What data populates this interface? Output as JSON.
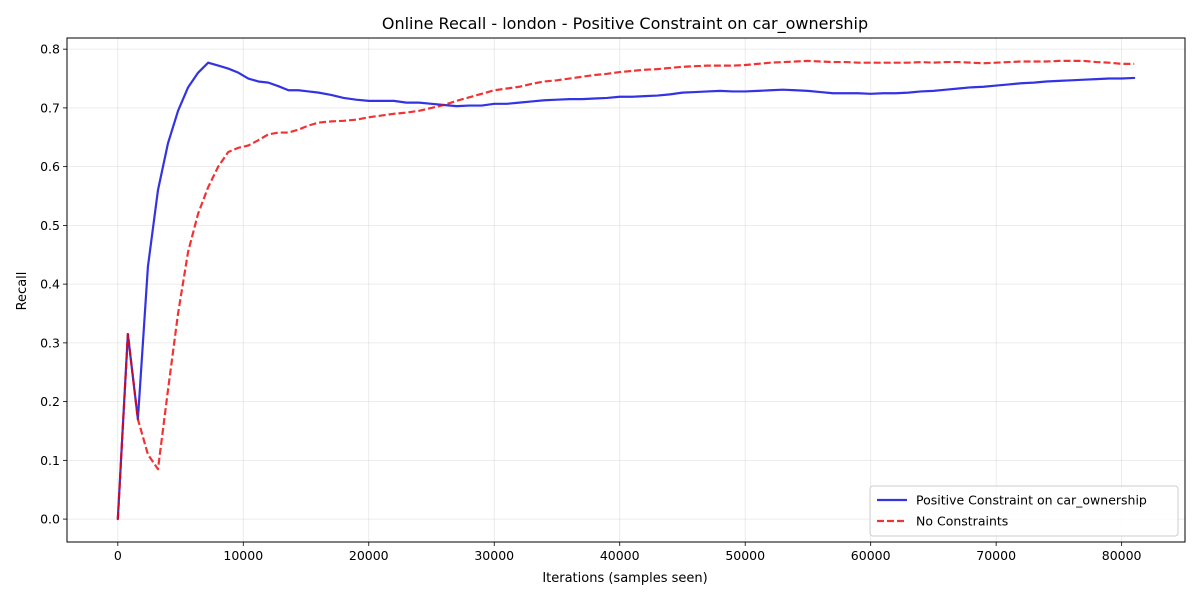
{
  "chart_data": {
    "type": "line",
    "title": "Online Recall - london - Positive Constraint on car_ownership",
    "xlabel": "Iterations (samples seen)",
    "ylabel": "Recall",
    "xlim": [
      -4050,
      85050
    ],
    "ylim": [
      -0.039,
      0.819
    ],
    "xticks": [
      0,
      10000,
      20000,
      30000,
      40000,
      50000,
      60000,
      70000,
      80000
    ],
    "yticks": [
      0.0,
      0.1,
      0.2,
      0.3,
      0.4,
      0.5,
      0.6,
      0.7,
      0.8
    ],
    "xtick_labels": [
      "0",
      "10000",
      "20000",
      "30000",
      "40000",
      "50000",
      "60000",
      "70000",
      "80000"
    ],
    "ytick_labels": [
      "0.0",
      "0.1",
      "0.2",
      "0.3",
      "0.4",
      "0.5",
      "0.6",
      "0.7",
      "0.8"
    ],
    "grid": true,
    "legend_position": "lower-right",
    "series": [
      {
        "name": "Positive Constraint on car_ownership",
        "color": "#0000dd",
        "style": "solid",
        "x": [
          0,
          800,
          1600,
          2400,
          3200,
          4000,
          4800,
          5600,
          6400,
          7200,
          8000,
          8800,
          9600,
          10400,
          11200,
          12000,
          12800,
          13600,
          14400,
          15200,
          16000,
          17000,
          18000,
          19000,
          20000,
          21000,
          22000,
          23000,
          24000,
          25000,
          26000,
          27000,
          28000,
          29000,
          30000,
          31000,
          32000,
          33000,
          34000,
          35000,
          36000,
          37000,
          38000,
          39000,
          40000,
          41000,
          42000,
          43000,
          44000,
          45000,
          46000,
          47000,
          48000,
          49000,
          50000,
          51000,
          52000,
          53000,
          54000,
          55000,
          56000,
          57000,
          58000,
          59000,
          60000,
          61000,
          62000,
          63000,
          64000,
          65000,
          66000,
          67000,
          68000,
          69000,
          70000,
          71000,
          72000,
          73000,
          74000,
          75000,
          76000,
          77000,
          78000,
          79000,
          80000,
          81000
        ],
        "y": [
          0.0,
          0.315,
          0.17,
          0.43,
          0.56,
          0.64,
          0.695,
          0.735,
          0.76,
          0.777,
          0.772,
          0.767,
          0.76,
          0.75,
          0.745,
          0.743,
          0.737,
          0.73,
          0.73,
          0.728,
          0.726,
          0.722,
          0.717,
          0.714,
          0.712,
          0.712,
          0.712,
          0.709,
          0.709,
          0.707,
          0.705,
          0.703,
          0.704,
          0.704,
          0.707,
          0.707,
          0.709,
          0.711,
          0.713,
          0.714,
          0.715,
          0.715,
          0.716,
          0.717,
          0.719,
          0.719,
          0.72,
          0.721,
          0.723,
          0.726,
          0.727,
          0.728,
          0.729,
          0.728,
          0.728,
          0.729,
          0.73,
          0.731,
          0.73,
          0.729,
          0.727,
          0.725,
          0.725,
          0.725,
          0.724,
          0.725,
          0.725,
          0.726,
          0.728,
          0.729,
          0.731,
          0.733,
          0.735,
          0.736,
          0.738,
          0.74,
          0.742,
          0.743,
          0.745,
          0.746,
          0.747,
          0.748,
          0.749,
          0.75,
          0.75,
          0.751
        ]
      },
      {
        "name": "No Constraints",
        "color": "#ee0000",
        "style": "dashed",
        "x": [
          0,
          800,
          1600,
          2400,
          3200,
          4000,
          4800,
          5600,
          6400,
          7200,
          8000,
          8800,
          9600,
          10400,
          11200,
          12000,
          12800,
          13600,
          14400,
          15200,
          16000,
          17000,
          18000,
          19000,
          20000,
          21000,
          22000,
          23000,
          24000,
          25000,
          26000,
          27000,
          28000,
          29000,
          30000,
          31000,
          32000,
          33000,
          34000,
          35000,
          36000,
          37000,
          38000,
          39000,
          40000,
          41000,
          42000,
          43000,
          44000,
          45000,
          46000,
          47000,
          48000,
          49000,
          50000,
          51000,
          52000,
          53000,
          54000,
          55000,
          56000,
          57000,
          58000,
          59000,
          60000,
          61000,
          62000,
          63000,
          64000,
          65000,
          66000,
          67000,
          68000,
          69000,
          70000,
          71000,
          72000,
          73000,
          74000,
          75000,
          76000,
          77000,
          78000,
          79000,
          80000,
          81000
        ],
        "y": [
          0.0,
          0.315,
          0.17,
          0.11,
          0.085,
          0.22,
          0.35,
          0.455,
          0.52,
          0.565,
          0.6,
          0.625,
          0.632,
          0.636,
          0.645,
          0.655,
          0.658,
          0.658,
          0.663,
          0.67,
          0.675,
          0.677,
          0.678,
          0.68,
          0.684,
          0.687,
          0.69,
          0.692,
          0.695,
          0.7,
          0.705,
          0.712,
          0.718,
          0.724,
          0.73,
          0.733,
          0.736,
          0.741,
          0.745,
          0.747,
          0.75,
          0.753,
          0.756,
          0.758,
          0.761,
          0.763,
          0.765,
          0.766,
          0.768,
          0.77,
          0.771,
          0.772,
          0.772,
          0.772,
          0.773,
          0.775,
          0.777,
          0.778,
          0.779,
          0.78,
          0.779,
          0.778,
          0.778,
          0.777,
          0.777,
          0.777,
          0.777,
          0.777,
          0.778,
          0.777,
          0.778,
          0.778,
          0.777,
          0.776,
          0.777,
          0.778,
          0.779,
          0.779,
          0.779,
          0.78,
          0.78,
          0.78,
          0.778,
          0.777,
          0.775,
          0.775
        ]
      }
    ]
  }
}
